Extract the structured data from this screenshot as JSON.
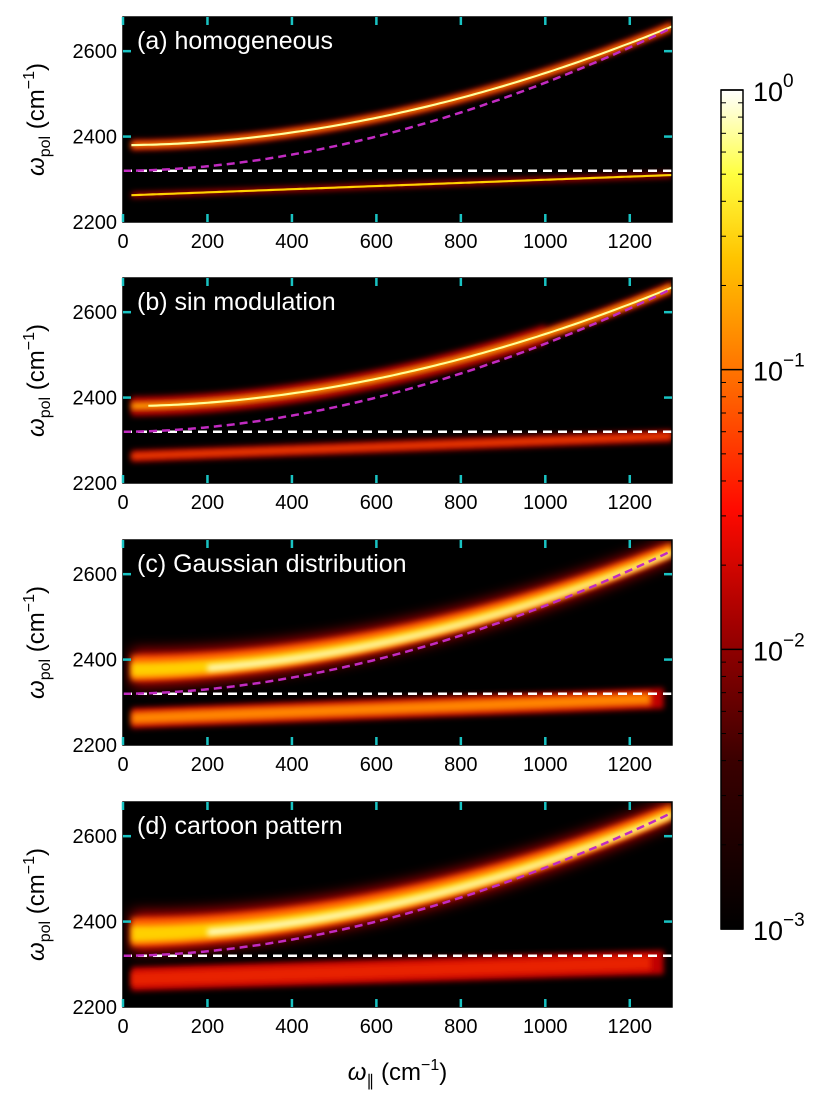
{
  "chart_data": {
    "type": "heatmap",
    "xlabel": {
      "sym": "ω",
      "sub": "∥",
      "unit": "(cm",
      "exp": "−1",
      "close": ")"
    },
    "ylabel": {
      "sym": "ω",
      "sub": "pol",
      "unit": "(cm",
      "exp": "−1",
      "close": ")"
    },
    "xlim": [
      0,
      1300
    ],
    "ylim": [
      2200,
      2680
    ],
    "x_ticks": [
      "0",
      "200",
      "400",
      "600",
      "800",
      "1000",
      "1200"
    ],
    "y_ticks": [
      "2200",
      "2400",
      "2600"
    ],
    "reference_lines": [
      {
        "name": "molecular-frequency",
        "y": 2320,
        "color": "#ffffff",
        "style": "dashed"
      },
      {
        "name": "cavity-dispersion",
        "description_visible": false,
        "color": "#c12bc1",
        "style": "dashed",
        "from": [
          0,
          2320
        ],
        "to": [
          1300,
          2655
        ]
      }
    ],
    "colorbar": {
      "scale": "log",
      "range": [
        0.001,
        1
      ],
      "ticks": [
        {
          "base": "10",
          "exp": "0"
        },
        {
          "base": "10",
          "exp": "−1"
        },
        {
          "base": "10",
          "exp": "−2"
        },
        {
          "base": "10",
          "exp": "−3"
        }
      ],
      "colormap": "hot"
    },
    "panels": [
      {
        "label": "(a) homogeneous",
        "upper_start": 2380,
        "lower_start": 2262,
        "lower_end": 2310,
        "spread": 8,
        "style": "sharp"
      },
      {
        "label": "(b) sin modulation",
        "upper_start": 2380,
        "lower_start": 2262,
        "lower_end": 2310,
        "spread": 18,
        "style": "split"
      },
      {
        "label": "(c) Gaussian distribution",
        "upper_start": 2380,
        "lower_start": 2262,
        "lower_end": 2310,
        "spread": 40,
        "style": "broad"
      },
      {
        "label": "(d) cartoon pattern",
        "upper_start": 2375,
        "lower_start": 2265,
        "lower_end": 2305,
        "spread": 45,
        "style": "broad"
      }
    ]
  }
}
